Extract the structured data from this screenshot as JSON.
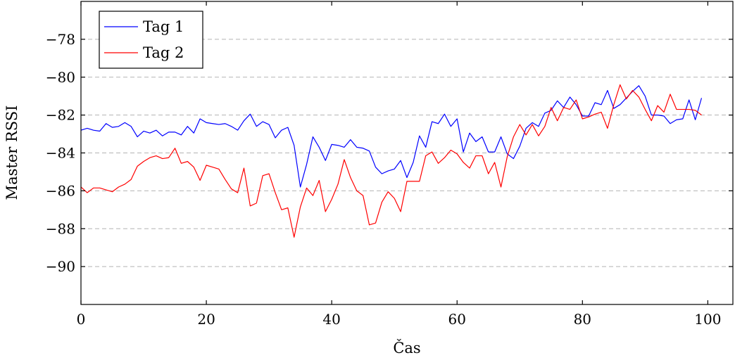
{
  "chart_data": {
    "type": "line",
    "title": "",
    "xlabel": "Čas",
    "ylabel": "Master RSSI",
    "xlim": [
      0,
      104
    ],
    "ylim": [
      -92,
      -76
    ],
    "xticks": [
      0,
      20,
      40,
      60,
      80,
      100
    ],
    "xtick_labels": [
      "0",
      "20",
      "40",
      "60",
      "80",
      "100"
    ],
    "yticks": [
      -90,
      -88,
      -86,
      -84,
      -82,
      -80,
      -78
    ],
    "ytick_labels": [
      "−90",
      "−88",
      "−86",
      "−84",
      "−82",
      "−80",
      "−78"
    ],
    "grid": "horizontal dashed",
    "legend_position": "top-left",
    "series": [
      {
        "name": "Tag 1",
        "color": "#0000ff",
        "x": [
          0,
          1,
          2,
          3,
          4,
          5,
          6,
          7,
          8,
          9,
          10,
          11,
          12,
          13,
          14,
          15,
          16,
          17,
          18,
          19,
          20,
          21,
          22,
          23,
          24,
          25,
          26,
          27,
          28,
          29,
          30,
          31,
          32,
          33,
          34,
          35,
          36,
          37,
          38,
          39,
          40,
          41,
          42,
          43,
          44,
          45,
          46,
          47,
          48,
          49,
          50,
          51,
          52,
          53,
          54,
          55,
          56,
          57,
          58,
          59,
          60,
          61,
          62,
          63,
          64,
          65,
          66,
          67,
          68,
          69,
          70,
          71,
          72,
          73,
          74,
          75,
          76,
          77,
          78,
          79,
          80,
          81,
          82,
          83,
          84,
          85,
          86,
          87,
          88,
          89,
          90,
          91,
          92,
          93,
          94,
          95,
          96,
          97,
          98,
          99
        ],
        "values": [
          -82.8,
          -82.7,
          -82.8,
          -82.85,
          -82.45,
          -82.65,
          -82.6,
          -82.4,
          -82.6,
          -83.15,
          -82.85,
          -82.95,
          -82.8,
          -83.1,
          -82.9,
          -82.9,
          -83.05,
          -82.6,
          -82.95,
          -82.2,
          -82.4,
          -82.45,
          -82.5,
          -82.45,
          -82.6,
          -82.8,
          -82.3,
          -81.95,
          -82.6,
          -82.35,
          -82.5,
          -83.2,
          -82.8,
          -82.65,
          -83.6,
          -85.8,
          -84.6,
          -83.15,
          -83.7,
          -84.4,
          -83.55,
          -83.6,
          -83.7,
          -83.3,
          -83.7,
          -83.75,
          -83.9,
          -84.75,
          -85.1,
          -84.95,
          -84.85,
          -84.4,
          -85.3,
          -84.5,
          -83.1,
          -83.7,
          -82.35,
          -82.45,
          -81.95,
          -82.6,
          -82.2,
          -83.95,
          -82.95,
          -83.4,
          -83.15,
          -83.95,
          -83.95,
          -83.15,
          -84.05,
          -84.3,
          -83.65,
          -82.7,
          -82.4,
          -82.6,
          -81.9,
          -81.75,
          -81.25,
          -81.6,
          -81.05,
          -81.45,
          -82.05,
          -82.05,
          -81.35,
          -81.45,
          -80.7,
          -81.65,
          -81.45,
          -81.1,
          -80.75,
          -80.45,
          -81.0,
          -82.0,
          -82.0,
          -82.05,
          -82.45,
          -82.25,
          -82.2,
          -81.2,
          -82.25,
          -81.1
        ]
      },
      {
        "name": "Tag 2",
        "color": "#ff0000",
        "x": [
          0,
          1,
          2,
          3,
          4,
          5,
          6,
          7,
          8,
          9,
          10,
          11,
          12,
          13,
          14,
          15,
          16,
          17,
          18,
          19,
          20,
          21,
          22,
          23,
          24,
          25,
          26,
          27,
          28,
          29,
          30,
          31,
          32,
          33,
          34,
          35,
          36,
          37,
          38,
          39,
          40,
          41,
          42,
          43,
          44,
          45,
          46,
          47,
          48,
          49,
          50,
          51,
          52,
          53,
          54,
          55,
          56,
          57,
          58,
          59,
          60,
          61,
          62,
          63,
          64,
          65,
          66,
          67,
          68,
          69,
          70,
          71,
          72,
          73,
          74,
          75,
          76,
          77,
          78,
          79,
          80,
          81,
          82,
          83,
          84,
          85,
          86,
          87,
          88,
          89,
          90,
          91,
          92,
          93,
          94,
          95,
          96,
          97,
          98,
          99
        ],
        "values": [
          -85.8,
          -86.1,
          -85.85,
          -85.85,
          -85.95,
          -86.05,
          -85.8,
          -85.65,
          -85.4,
          -84.7,
          -84.45,
          -84.25,
          -84.15,
          -84.3,
          -84.25,
          -83.75,
          -84.55,
          -84.45,
          -84.75,
          -85.45,
          -84.65,
          -84.75,
          -84.85,
          -85.4,
          -85.9,
          -86.1,
          -84.8,
          -86.8,
          -86.65,
          -85.2,
          -85.1,
          -86.1,
          -87.0,
          -86.9,
          -88.45,
          -86.85,
          -85.85,
          -86.25,
          -85.45,
          -87.1,
          -86.45,
          -85.65,
          -84.35,
          -85.3,
          -86.0,
          -86.25,
          -87.8,
          -87.7,
          -86.6,
          -86.05,
          -86.4,
          -87.1,
          -85.5,
          -85.5,
          -85.5,
          -84.15,
          -83.95,
          -84.55,
          -84.25,
          -83.85,
          -84.05,
          -84.5,
          -84.8,
          -84.15,
          -84.15,
          -85.1,
          -84.5,
          -85.8,
          -84.2,
          -83.15,
          -82.5,
          -83.05,
          -82.5,
          -83.1,
          -82.6,
          -81.6,
          -82.3,
          -81.6,
          -81.7,
          -81.2,
          -82.2,
          -82.1,
          -81.95,
          -81.85,
          -82.7,
          -81.45,
          -80.4,
          -81.15,
          -80.7,
          -81.05,
          -81.7,
          -82.3,
          -81.5,
          -81.85,
          -80.9,
          -81.7,
          -81.7,
          -81.7,
          -81.75,
          -82.0
        ]
      }
    ]
  }
}
